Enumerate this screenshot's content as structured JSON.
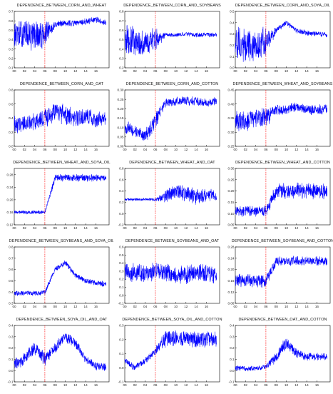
{
  "chart_data": [
    {
      "type": "line",
      "title": "DEPENDENCE_BETWEEN_CORN_AND_WHEAT",
      "ylim": [
        0.1,
        0.7
      ],
      "yticks": [
        "0.1",
        "0.2",
        "0.3",
        "0.4",
        "0.5",
        "0.6",
        "0.7"
      ],
      "xticks": [
        "00",
        "02",
        "04",
        "06",
        "08",
        "10",
        "12",
        "14",
        "16"
      ],
      "break_year": "06",
      "x": [
        "00",
        "02",
        "04",
        "06",
        "08",
        "10",
        "12",
        "14",
        "16",
        "18"
      ],
      "series": [
        {
          "values": [
            0.45,
            0.46,
            0.44,
            0.45,
            0.56,
            0.58,
            0.57,
            0.59,
            0.61,
            0.58
          ]
        }
      ],
      "spread": [
        0.12,
        0.13,
        0.14,
        0.12,
        0.03,
        0.03,
        0.03,
        0.03,
        0.03,
        0.03
      ]
    },
    {
      "type": "line",
      "title": "DEPENDENCE_BETWEEN_CORN_AND_SOYBEANS",
      "ylim": [
        0.2,
        0.8
      ],
      "yticks": [
        "0.2",
        "0.3",
        "0.4",
        "0.5",
        "0.6",
        "0.7",
        "0.8"
      ],
      "xticks": [
        "00",
        "02",
        "04",
        "06",
        "08",
        "10",
        "12",
        "14",
        "16"
      ],
      "break_year": "06",
      "x": [
        "00",
        "02",
        "04",
        "06",
        "08",
        "10",
        "12",
        "14",
        "16",
        "18"
      ],
      "series": [
        {
          "values": [
            0.5,
            0.48,
            0.45,
            0.5,
            0.55,
            0.55,
            0.56,
            0.55,
            0.55,
            0.55
          ]
        }
      ],
      "spread": [
        0.14,
        0.15,
        0.12,
        0.1,
        0.02,
        0.02,
        0.02,
        0.02,
        0.02,
        0.02
      ]
    },
    {
      "type": "line",
      "title": "DEPENDENCE_BETWEEN_CORN_AND_SOYA_OIL",
      "ylim": [
        0.0,
        0.5
      ],
      "yticks": [
        "0.0",
        "0.1",
        "0.2",
        "0.3",
        "0.4",
        "0.5"
      ],
      "xticks": [
        "00",
        "02",
        "04",
        "06",
        "08",
        "10",
        "12",
        "14",
        "16"
      ],
      "break_year": "06",
      "x": [
        "00",
        "02",
        "04",
        "06",
        "08",
        "10",
        "12",
        "14",
        "16",
        "18"
      ],
      "series": [
        {
          "values": [
            0.22,
            0.2,
            0.19,
            0.24,
            0.33,
            0.4,
            0.33,
            0.31,
            0.3,
            0.29
          ]
        }
      ],
      "spread": [
        0.13,
        0.13,
        0.12,
        0.12,
        0.02,
        0.02,
        0.02,
        0.02,
        0.02,
        0.02
      ]
    },
    {
      "type": "line",
      "title": "DEPENDENCE_BETWEEN_CORN_AND_OAT",
      "ylim": [
        0.0,
        0.8
      ],
      "yticks": [
        "0.0",
        "0.2",
        "0.4",
        "0.6",
        "0.8"
      ],
      "xticks": [
        "00",
        "02",
        "04",
        "06",
        "08",
        "10",
        "12",
        "14",
        "16"
      ],
      "break_year": "06",
      "x": [
        "00",
        "02",
        "04",
        "06",
        "08",
        "10",
        "12",
        "14",
        "16",
        "18"
      ],
      "series": [
        {
          "values": [
            0.3,
            0.33,
            0.35,
            0.38,
            0.48,
            0.45,
            0.4,
            0.42,
            0.38,
            0.4
          ]
        }
      ],
      "spread": [
        0.1,
        0.1,
        0.1,
        0.12,
        0.12,
        0.12,
        0.1,
        0.1,
        0.1,
        0.1
      ]
    },
    {
      "type": "line",
      "title": "DEPENDENCE_BETWEEN_CORN_AND_COTTON",
      "ylim": [
        0.0,
        0.3
      ],
      "yticks": [
        "0.00",
        "0.05",
        "0.10",
        "0.15",
        "0.20",
        "0.25",
        "0.30"
      ],
      "xticks": [
        "00",
        "02",
        "04",
        "06",
        "08",
        "10",
        "12",
        "14",
        "16"
      ],
      "break_year": "06",
      "x": [
        "00",
        "02",
        "04",
        "06",
        "08",
        "10",
        "12",
        "14",
        "16",
        "18"
      ],
      "series": [
        {
          "values": [
            0.1,
            0.08,
            0.05,
            0.14,
            0.23,
            0.24,
            0.24,
            0.24,
            0.23,
            0.24
          ]
        }
      ],
      "spread": [
        0.03,
        0.03,
        0.03,
        0.04,
        0.02,
        0.02,
        0.02,
        0.02,
        0.02,
        0.02
      ]
    },
    {
      "type": "line",
      "title": "DEPENDENCE_BETWEEN_WHEAT_AND_SOYBEANS",
      "ylim": [
        0.25,
        0.45
      ],
      "yticks": [
        "0.25",
        "0.30",
        "0.35",
        "0.40",
        "0.45"
      ],
      "xticks": [
        "00",
        "02",
        "04",
        "06",
        "08",
        "10",
        "12",
        "14",
        "16"
      ],
      "break_year": "06",
      "x": [
        "00",
        "02",
        "04",
        "06",
        "08",
        "10",
        "12",
        "14",
        "16",
        "18"
      ],
      "series": [
        {
          "values": [
            0.34,
            0.34,
            0.35,
            0.35,
            0.38,
            0.38,
            0.39,
            0.38,
            0.38,
            0.38
          ]
        }
      ],
      "spread": [
        0.03,
        0.03,
        0.03,
        0.03,
        0.015,
        0.015,
        0.015,
        0.015,
        0.015,
        0.015
      ]
    },
    {
      "type": "line",
      "title": "DEPENDENCE_BETWEEN_WHEAT_AND_SOYA_OIL",
      "ylim": [
        0.12,
        0.3
      ],
      "yticks": [
        "0.12",
        "0.16",
        "0.20",
        "0.24",
        "0.28"
      ],
      "xticks": [
        "00",
        "02",
        "04",
        "06",
        "08",
        "10",
        "12",
        "14",
        "16"
      ],
      "break_year": "06",
      "x": [
        "00",
        "02",
        "04",
        "06",
        "08",
        "10",
        "12",
        "14",
        "16",
        "18"
      ],
      "series": [
        {
          "values": [
            0.16,
            0.16,
            0.16,
            0.16,
            0.27,
            0.27,
            0.27,
            0.27,
            0.27,
            0.27
          ]
        }
      ],
      "spread": [
        0.005,
        0.005,
        0.005,
        0.005,
        0.01,
        0.01,
        0.01,
        0.01,
        0.01,
        0.01
      ]
    },
    {
      "type": "line",
      "title": "DEPENDENCE_BETWEEN_WHEAT_AND_OAT",
      "ylim": [
        -0.2,
        0.8
      ],
      "yticks": [
        "-0.2",
        "0.0",
        "0.2",
        "0.4",
        "0.6",
        "0.8"
      ],
      "xticks": [
        "00",
        "02",
        "04",
        "06",
        "08",
        "10",
        "12",
        "14",
        "16"
      ],
      "break_year": "06",
      "x": [
        "00",
        "02",
        "04",
        "06",
        "08",
        "10",
        "12",
        "14",
        "16",
        "18"
      ],
      "series": [
        {
          "values": [
            0.25,
            0.25,
            0.25,
            0.25,
            0.3,
            0.4,
            0.35,
            0.3,
            0.33,
            0.3
          ]
        }
      ],
      "spread": [
        0.02,
        0.02,
        0.02,
        0.02,
        0.1,
        0.12,
        0.12,
        0.12,
        0.1,
        0.1
      ]
    },
    {
      "type": "line",
      "title": "DEPENDENCE_BETWEEN_WHEAT_AND_COTTON",
      "ylim": [
        0.05,
        0.3
      ],
      "yticks": [
        "0.05",
        "0.10",
        "0.15",
        "0.20",
        "0.25",
        "0.30"
      ],
      "xticks": [
        "00",
        "02",
        "04",
        "06",
        "08",
        "10",
        "12",
        "14",
        "16"
      ],
      "break_year": "06",
      "x": [
        "00",
        "02",
        "04",
        "06",
        "08",
        "10",
        "12",
        "14",
        "16",
        "18"
      ],
      "series": [
        {
          "values": [
            0.11,
            0.11,
            0.11,
            0.11,
            0.2,
            0.2,
            0.2,
            0.2,
            0.2,
            0.2
          ]
        }
      ],
      "spread": [
        0.02,
        0.02,
        0.02,
        0.02,
        0.03,
        0.03,
        0.03,
        0.03,
        0.03,
        0.03
      ]
    },
    {
      "type": "line",
      "title": "DEPENDENCE_BETWEEN_SOYBEANS_AND_SOYA_OIL",
      "ylim": [
        0.3,
        0.8
      ],
      "yticks": [
        "0.3",
        "0.4",
        "0.5",
        "0.6",
        "0.7",
        "0.8"
      ],
      "xticks": [
        "00",
        "02",
        "04",
        "06",
        "08",
        "10",
        "12",
        "14",
        "16"
      ],
      "break_year": "06",
      "x": [
        "00",
        "02",
        "04",
        "06",
        "08",
        "10",
        "12",
        "14",
        "16",
        "18"
      ],
      "series": [
        {
          "values": [
            0.39,
            0.39,
            0.39,
            0.4,
            0.6,
            0.66,
            0.55,
            0.5,
            0.48,
            0.47
          ]
        }
      ],
      "spread": [
        0.02,
        0.02,
        0.02,
        0.02,
        0.02,
        0.02,
        0.02,
        0.02,
        0.02,
        0.02
      ]
    },
    {
      "type": "line",
      "title": "DEPENDENCE_BETWEEN_SOYBEANS_AND_OAT",
      "ylim": [
        -0.1,
        0.6
      ],
      "yticks": [
        "-0.1",
        "0.0",
        "0.1",
        "0.2",
        "0.3",
        "0.4",
        "0.5",
        "0.6"
      ],
      "xticks": [
        "00",
        "02",
        "04",
        "06",
        "08",
        "10",
        "12",
        "14",
        "16"
      ],
      "break_year": "06",
      "x": [
        "00",
        "02",
        "04",
        "06",
        "08",
        "10",
        "12",
        "14",
        "16",
        "18"
      ],
      "series": [
        {
          "values": [
            0.3,
            0.28,
            0.27,
            0.3,
            0.28,
            0.25,
            0.25,
            0.28,
            0.28,
            0.25
          ]
        }
      ],
      "spread": [
        0.1,
        0.1,
        0.1,
        0.1,
        0.1,
        0.1,
        0.1,
        0.1,
        0.1,
        0.1
      ]
    },
    {
      "type": "line",
      "title": "DEPENDENCE_BETWEEN_SOYBEANS_AND_COTTON",
      "ylim": [
        0.08,
        0.28
      ],
      "yticks": [
        "0.08",
        "0.12",
        "0.16",
        "0.20",
        "0.24",
        "0.28"
      ],
      "xticks": [
        "00",
        "02",
        "04",
        "06",
        "08",
        "10",
        "12",
        "14",
        "16"
      ],
      "break_year": "06",
      "x": [
        "00",
        "02",
        "04",
        "06",
        "08",
        "10",
        "12",
        "14",
        "16",
        "18"
      ],
      "series": [
        {
          "values": [
            0.16,
            0.16,
            0.16,
            0.16,
            0.23,
            0.23,
            0.23,
            0.23,
            0.23,
            0.23
          ]
        }
      ],
      "spread": [
        0.02,
        0.02,
        0.02,
        0.02,
        0.015,
        0.015,
        0.015,
        0.015,
        0.015,
        0.015
      ]
    },
    {
      "type": "line",
      "title": "DEPENDENCE_BETWEEN_SOYA_OIL_AND_OAT",
      "ylim": [
        -0.1,
        0.4
      ],
      "yticks": [
        "-0.1",
        "0.0",
        "0.1",
        "0.2",
        "0.3",
        "0.4"
      ],
      "xticks": [
        "00",
        "02",
        "04",
        "06",
        "08",
        "10",
        "12",
        "14",
        "16"
      ],
      "break_year": "06",
      "x": [
        "00",
        "02",
        "04",
        "06",
        "08",
        "10",
        "12",
        "14",
        "16",
        "18"
      ],
      "series": [
        {
          "values": [
            0.05,
            0.1,
            0.2,
            0.1,
            0.2,
            0.3,
            0.25,
            0.1,
            0.04,
            0.03
          ]
        }
      ],
      "spread": [
        0.05,
        0.05,
        0.05,
        0.05,
        0.04,
        0.04,
        0.04,
        0.03,
        0.03,
        0.03
      ]
    },
    {
      "type": "line",
      "title": "DEPENDENCE_BETWEEN_SOYA_OIL_AND_COTTON",
      "ylim": [
        -0.1,
        0.3
      ],
      "yticks": [
        "-0.1",
        "0.0",
        "0.1",
        "0.2",
        "0.3"
      ],
      "xticks": [
        "00",
        "02",
        "04",
        "06",
        "08",
        "10",
        "12",
        "14",
        "16"
      ],
      "break_year": "06",
      "x": [
        "00",
        "02",
        "04",
        "06",
        "08",
        "10",
        "12",
        "14",
        "16",
        "18"
      ],
      "series": [
        {
          "values": [
            0.05,
            0.0,
            0.05,
            0.12,
            0.21,
            0.21,
            0.21,
            0.2,
            0.2,
            0.21
          ]
        }
      ],
      "spread": [
        0.02,
        0.02,
        0.02,
        0.03,
        0.05,
        0.05,
        0.05,
        0.05,
        0.05,
        0.05
      ]
    },
    {
      "type": "line",
      "title": "DEPENDENCE_BETWEEN_OAT_AND_COTTON",
      "ylim": [
        -0.1,
        0.4
      ],
      "yticks": [
        "-0.1",
        "0.0",
        "0.1",
        "0.2",
        "0.3",
        "0.4"
      ],
      "xticks": [
        "00",
        "02",
        "04",
        "06",
        "08",
        "10",
        "12",
        "14",
        "16"
      ],
      "break_year": "06",
      "x": [
        "00",
        "02",
        "04",
        "06",
        "08",
        "10",
        "12",
        "14",
        "16",
        "18"
      ],
      "series": [
        {
          "values": [
            0.02,
            0.02,
            0.02,
            0.03,
            0.12,
            0.25,
            0.15,
            0.12,
            0.12,
            0.13
          ]
        }
      ],
      "spread": [
        0.02,
        0.02,
        0.02,
        0.02,
        0.04,
        0.05,
        0.04,
        0.03,
        0.03,
        0.03
      ]
    }
  ],
  "colors": {
    "series": "#0000ff",
    "break_line": "#ff0000",
    "axis": "#000000"
  }
}
